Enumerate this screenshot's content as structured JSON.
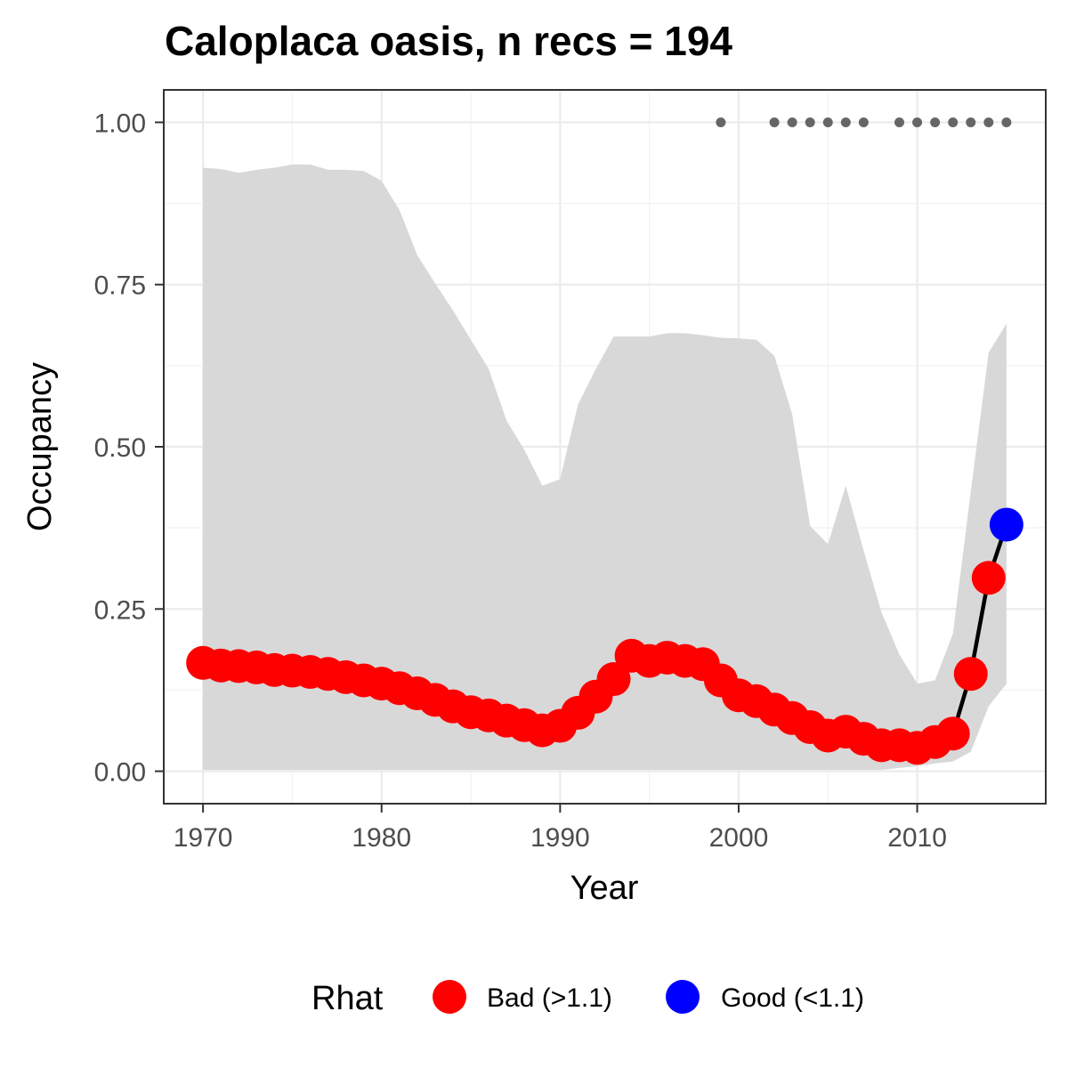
{
  "chart_data": {
    "type": "line",
    "title": "Caloplaca oasis, n recs = 194",
    "xlabel": "Year",
    "ylabel": "Occupancy",
    "xlim": [
      1967.8,
      2017.2
    ],
    "ylim": [
      -0.05,
      1.05
    ],
    "x_ticks": [
      1970,
      1980,
      1990,
      2000,
      2010
    ],
    "x_tick_labels": [
      "1970",
      "1980",
      "1990",
      "2000",
      "2010"
    ],
    "y_ticks": [
      0,
      0.25,
      0.5,
      0.75,
      1.0
    ],
    "y_tick_labels": [
      "0.00",
      "0.25",
      "0.50",
      "0.75",
      "1.00"
    ],
    "grid": true,
    "legend_position": "bottom",
    "series": [
      {
        "years": [
          1970,
          1971,
          1972,
          1973,
          1974,
          1975,
          1976,
          1977,
          1978,
          1979,
          1980,
          1981,
          1982,
          1983,
          1984,
          1985,
          1986,
          1987,
          1988,
          1989,
          1990,
          1991,
          1992,
          1993,
          1994,
          1995,
          1996,
          1997,
          1998,
          1999,
          2000,
          2001,
          2002,
          2003,
          2004,
          2005,
          2006,
          2007,
          2008,
          2009,
          2010,
          2011,
          2012,
          2013,
          2014,
          2015
        ],
        "occupancy": [
          0.167,
          0.163,
          0.162,
          0.16,
          0.156,
          0.155,
          0.153,
          0.15,
          0.145,
          0.14,
          0.135,
          0.128,
          0.12,
          0.11,
          0.1,
          0.091,
          0.086,
          0.078,
          0.071,
          0.063,
          0.07,
          0.09,
          0.115,
          0.142,
          0.178,
          0.17,
          0.175,
          0.17,
          0.165,
          0.14,
          0.117,
          0.108,
          0.095,
          0.082,
          0.068,
          0.055,
          0.061,
          0.05,
          0.04,
          0.04,
          0.036,
          0.045,
          0.058,
          0.15,
          0.298,
          0.38
        ],
        "lower": [
          0.002,
          0.002,
          0.002,
          0.002,
          0.002,
          0.002,
          0.002,
          0.002,
          0.002,
          0.002,
          0.002,
          0.002,
          0.002,
          0.002,
          0.002,
          0.002,
          0.002,
          0.002,
          0.002,
          0.002,
          0.002,
          0.002,
          0.002,
          0.002,
          0.002,
          0.002,
          0.002,
          0.002,
          0.002,
          0.002,
          0.002,
          0.002,
          0.002,
          0.002,
          0.002,
          0.002,
          0.002,
          0.002,
          0.002,
          0.005,
          0.008,
          0.012,
          0.015,
          0.03,
          0.1,
          0.135
        ],
        "upper": [
          0.93,
          0.928,
          0.922,
          0.927,
          0.93,
          0.935,
          0.935,
          0.927,
          0.927,
          0.925,
          0.91,
          0.865,
          0.795,
          0.752,
          0.71,
          0.665,
          0.62,
          0.54,
          0.495,
          0.44,
          0.45,
          0.565,
          0.62,
          0.67,
          0.67,
          0.67,
          0.675,
          0.675,
          0.672,
          0.668,
          0.667,
          0.665,
          0.64,
          0.55,
          0.378,
          0.35,
          0.44,
          0.34,
          0.245,
          0.18,
          0.135,
          0.14,
          0.212,
          0.43,
          0.645,
          0.69
        ],
        "rhat_status": [
          "Bad",
          "Bad",
          "Bad",
          "Bad",
          "Bad",
          "Bad",
          "Bad",
          "Bad",
          "Bad",
          "Bad",
          "Bad",
          "Bad",
          "Bad",
          "Bad",
          "Bad",
          "Bad",
          "Bad",
          "Bad",
          "Bad",
          "Bad",
          "Bad",
          "Bad",
          "Bad",
          "Bad",
          "Bad",
          "Bad",
          "Bad",
          "Bad",
          "Bad",
          "Bad",
          "Bad",
          "Bad",
          "Bad",
          "Bad",
          "Bad",
          "Bad",
          "Bad",
          "Bad",
          "Bad",
          "Bad",
          "Bad",
          "Bad",
          "Bad",
          "Bad",
          "Bad",
          "Good"
        ]
      }
    ],
    "record_years": [
      1999,
      2002,
      2003,
      2004,
      2005,
      2006,
      2007,
      2009,
      2010,
      2011,
      2012,
      2013,
      2014,
      2015
    ],
    "record_marker_value": 1.0,
    "line_segment_years": [
      2012,
      2015
    ],
    "legend": {
      "title": "Rhat",
      "items": [
        {
          "label": "Bad (>1.1)",
          "color": "#ff0000"
        },
        {
          "label": "Good (<1.1)",
          "color": "#0000ff"
        }
      ]
    },
    "colors": {
      "bad": "#ff0000",
      "good": "#0000ff",
      "ribbon": "#d6d6d6",
      "line": "#000000",
      "record_dots": "#666666"
    }
  }
}
